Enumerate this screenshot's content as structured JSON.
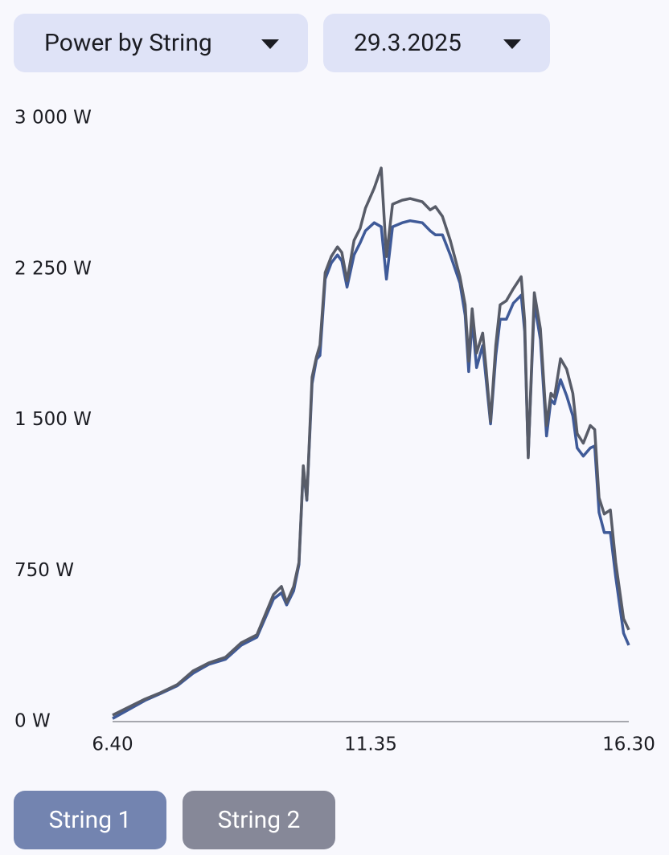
{
  "controls": {
    "view": "Power by String",
    "date": "29.3.2025"
  },
  "chart_data": {
    "type": "line",
    "x": [
      400,
      437,
      455,
      474,
      492,
      510,
      529,
      547,
      565,
      584,
      593,
      599,
      607,
      613,
      618,
      622,
      628,
      633,
      637,
      643,
      650,
      657,
      662,
      668,
      676,
      683,
      689,
      699,
      707,
      713,
      720,
      731,
      740,
      754,
      763,
      769,
      777,
      786,
      797,
      803,
      807,
      811,
      816,
      823,
      827,
      832,
      838,
      843,
      850,
      858,
      867,
      871,
      875,
      882,
      889,
      896,
      901,
      905,
      912,
      919,
      926,
      931,
      938,
      946,
      951,
      956,
      962,
      969,
      975,
      984,
      990
    ],
    "series": [
      {
        "name": "String 1",
        "color": "#3f5a98",
        "button_color": "#7384b0",
        "values": [
          15,
          105,
          140,
          178,
          240,
          285,
          310,
          380,
          420,
          610,
          640,
          580,
          650,
          780,
          1260,
          1100,
          1680,
          1800,
          1820,
          2200,
          2280,
          2320,
          2290,
          2160,
          2320,
          2380,
          2440,
          2480,
          2460,
          2200,
          2460,
          2480,
          2490,
          2480,
          2440,
          2420,
          2420,
          2320,
          2180,
          2020,
          1740,
          2000,
          1760,
          1870,
          1700,
          1480,
          1820,
          2000,
          2000,
          2080,
          2120,
          1940,
          1320,
          2080,
          1900,
          1420,
          1600,
          1580,
          1700,
          1620,
          1520,
          1360,
          1320,
          1360,
          1370,
          1040,
          940,
          940,
          720,
          440,
          380
        ]
      },
      {
        "name": "String 2",
        "color": "#585c68",
        "button_color": "#868898",
        "values": [
          32,
          112,
          144,
          184,
          252,
          292,
          320,
          392,
          432,
          632,
          672,
          592,
          672,
          792,
          1272,
          1104,
          1712,
          1812,
          1872,
          2232,
          2312,
          2360,
          2332,
          2192,
          2392,
          2452,
          2552,
          2652,
          2752,
          2312,
          2572,
          2592,
          2600,
          2584,
          2544,
          2560,
          2512,
          2392,
          2212,
          2072,
          1792,
          2052,
          1832,
          1932,
          1752,
          1492,
          1872,
          2072,
          2092,
          2152,
          2212,
          1992,
          1312,
          2132,
          1952,
          1472,
          1632,
          1612,
          1804,
          1752,
          1632,
          1432,
          1384,
          1472,
          1452,
          1112,
          1032,
          1052,
          792,
          512,
          456
        ]
      }
    ],
    "xlim": [
      400,
      990
    ],
    "xticks": [
      {
        "value": 400,
        "label": "6.40"
      },
      {
        "value": 695,
        "label": "11.35"
      },
      {
        "value": 990,
        "label": "16.30"
      }
    ],
    "ylim": [
      0,
      3000
    ],
    "yticks": [
      {
        "value": 0,
        "label": "0 W"
      },
      {
        "value": 750,
        "label": "750 W"
      },
      {
        "value": 1500,
        "label": "1 500 W"
      },
      {
        "value": 2250,
        "label": "2 250 W"
      },
      {
        "value": 3000,
        "label": "3 000 W"
      }
    ]
  }
}
